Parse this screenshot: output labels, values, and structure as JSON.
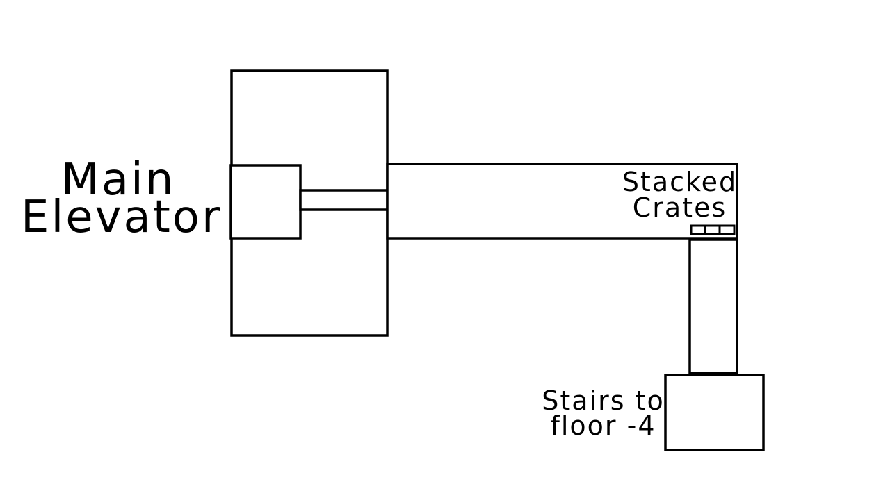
{
  "map": {
    "labels": {
      "main_elevator": [
        "Main",
        "Elevator"
      ],
      "stacked_crates": [
        "Stacked",
        "Crates"
      ],
      "stairs": [
        "Stairs to",
        "floor -4"
      ]
    },
    "colors": {
      "background": "#ffffff",
      "line": "#000000"
    }
  }
}
